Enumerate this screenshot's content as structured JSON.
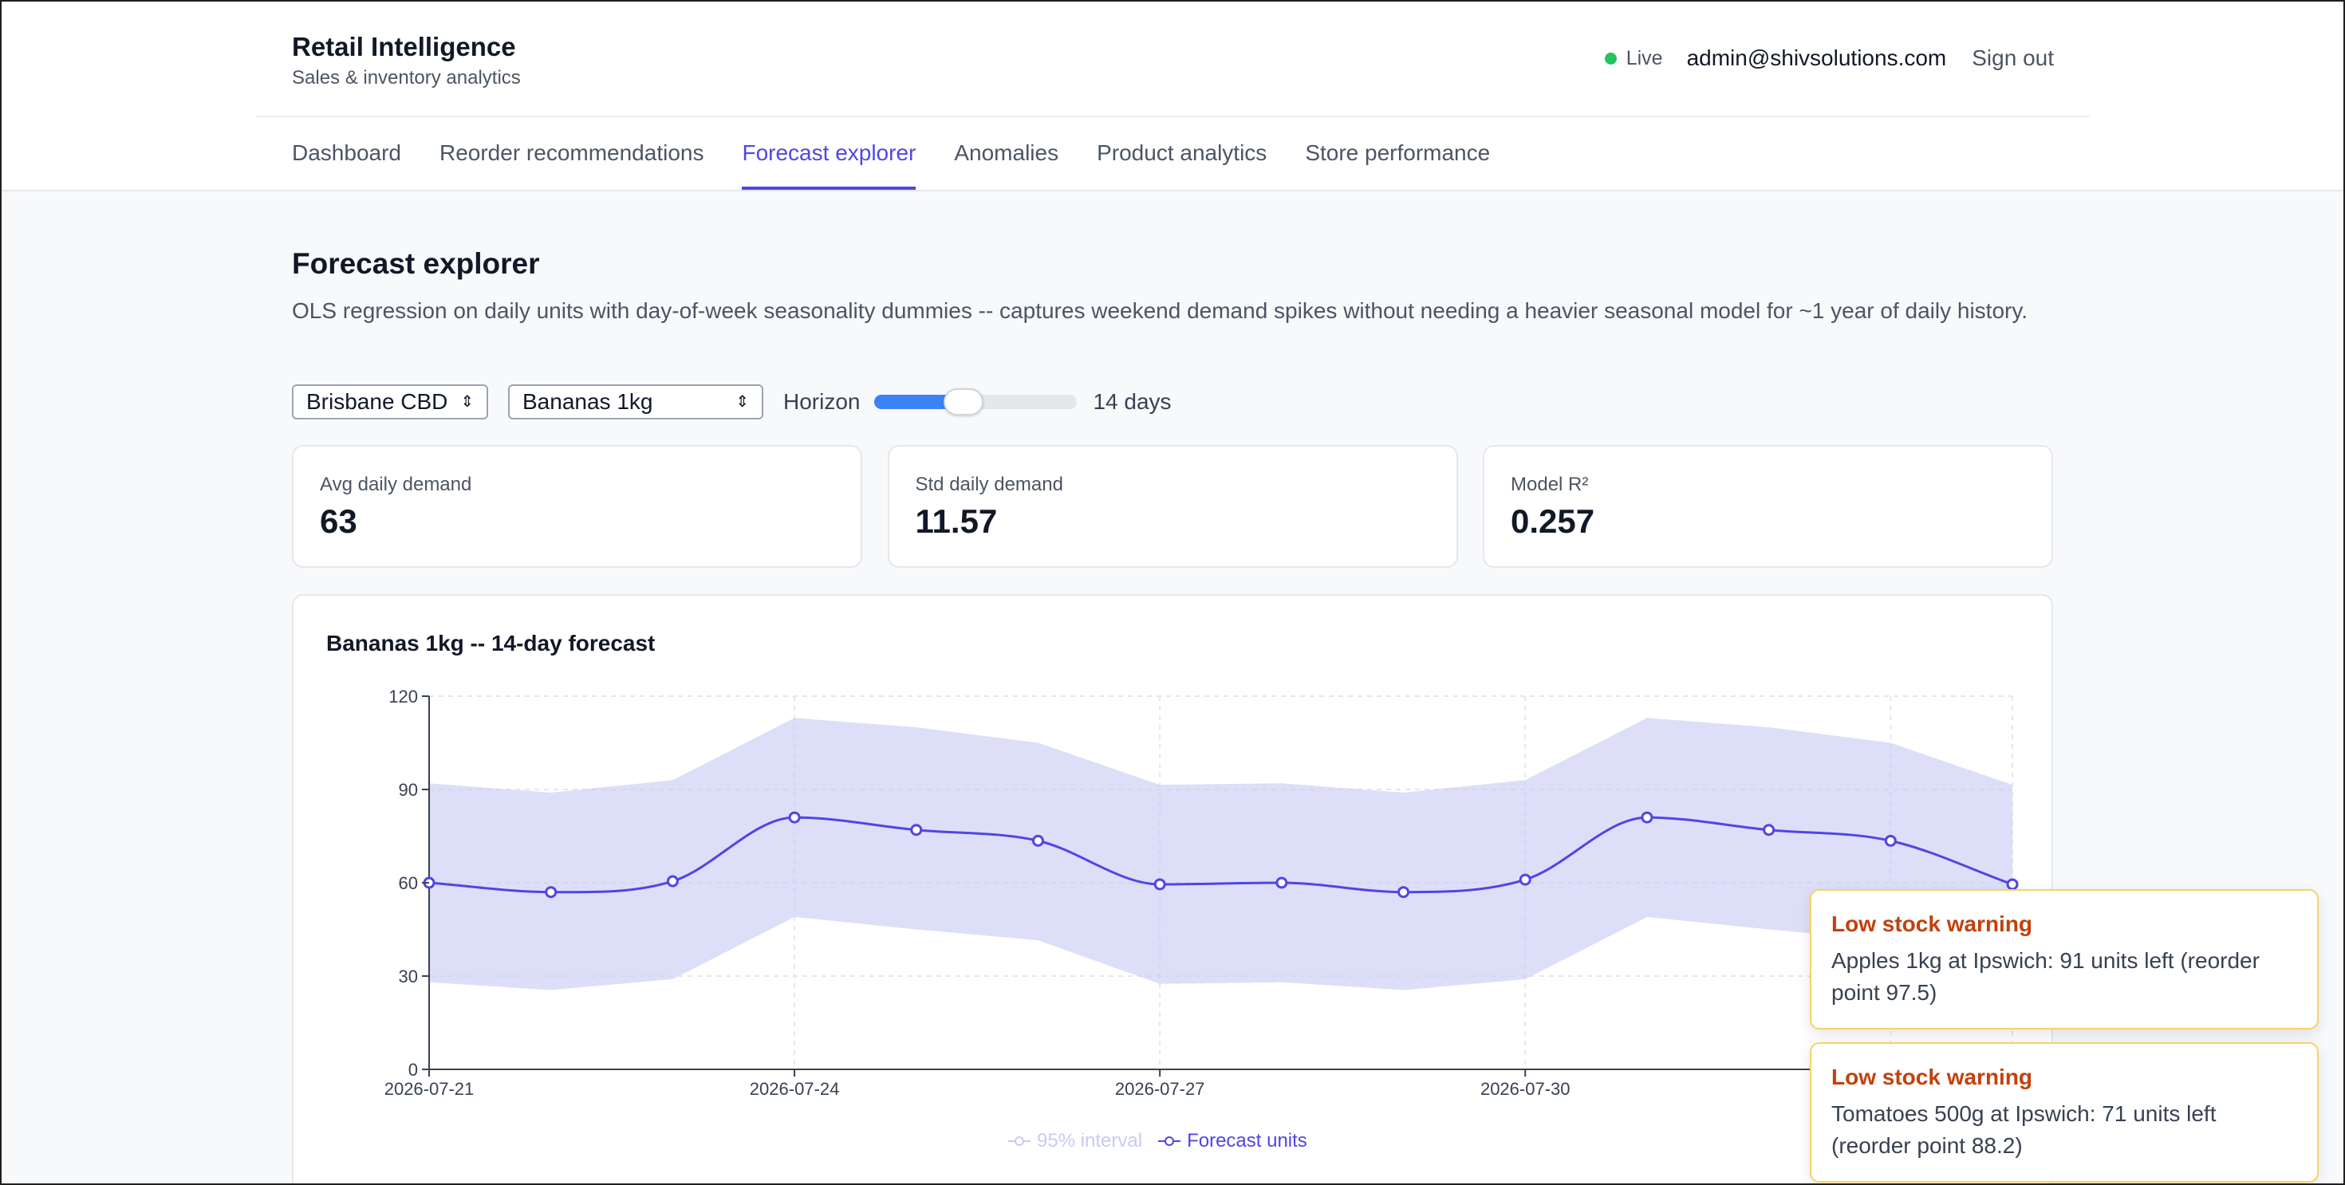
{
  "app": {
    "title": "Retail Intelligence",
    "subtitle": "Sales & inventory analytics"
  },
  "header": {
    "live_label": "Live",
    "email": "admin@shivsolutions.com",
    "signout_label": "Sign out"
  },
  "nav": {
    "tabs": [
      {
        "label": "Dashboard"
      },
      {
        "label": "Reorder recommendations"
      },
      {
        "label": "Forecast explorer",
        "active": true
      },
      {
        "label": "Anomalies"
      },
      {
        "label": "Product analytics"
      },
      {
        "label": "Store performance"
      }
    ]
  },
  "page": {
    "title": "Forecast explorer",
    "description": "OLS regression on daily units with day-of-week seasonality dummies -- captures weekend demand spikes without needing a heavier seasonal model for ~1 year of daily history."
  },
  "controls": {
    "store": "Brisbane CBD",
    "product": "Bananas 1kg",
    "horizon_label": "Horizon",
    "horizon_value": "14 days",
    "horizon_fraction": 0.34
  },
  "stats": [
    {
      "label": "Avg daily demand",
      "value": "63"
    },
    {
      "label": "Std daily demand",
      "value": "11.57"
    },
    {
      "label": "Model R²",
      "value": "0.257"
    }
  ],
  "chart_data": {
    "type": "line",
    "title": "Bananas 1kg -- 14-day forecast",
    "x": [
      "2026-07-21",
      "2026-07-22",
      "2026-07-23",
      "2026-07-24",
      "2026-07-25",
      "2026-07-26",
      "2026-07-27",
      "2026-07-28",
      "2026-07-29",
      "2026-07-30",
      "2026-07-31",
      "2026-08-01",
      "2026-08-02",
      "2026-08-03"
    ],
    "x_tick_labels": [
      "2026-07-21",
      "2026-07-24",
      "2026-07-27",
      "2026-07-30"
    ],
    "y_ticks": [
      0,
      30,
      60,
      90,
      120
    ],
    "ylim": [
      0,
      120
    ],
    "grid": true,
    "legend_position": "bottom-center",
    "series": [
      {
        "name": "Forecast units",
        "color": "#4f46e5",
        "values": [
          60,
          57,
          60.5,
          81,
          77,
          73.5,
          59.5,
          60,
          57,
          61,
          81,
          77,
          73.5,
          59.5
        ]
      },
      {
        "name": "95% interval",
        "color": "#c7c9f5",
        "upper": [
          92,
          89,
          93,
          113,
          110,
          105,
          91.5,
          92,
          89,
          93,
          113,
          110,
          105,
          91.5
        ],
        "lower": [
          28,
          25.5,
          29,
          49,
          45,
          41.5,
          27.5,
          28,
          25.5,
          29,
          49,
          45,
          41.5,
          27.5
        ]
      }
    ]
  },
  "notifications": [
    {
      "title": "Low stock warning",
      "message": "Apples 1kg at Ipswich: 91 units left (reorder point 97.5)"
    },
    {
      "title": "Low stock warning",
      "message": "Tomatoes 500g at Ipswich: 71 units left (reorder point 88.2)"
    }
  ]
}
